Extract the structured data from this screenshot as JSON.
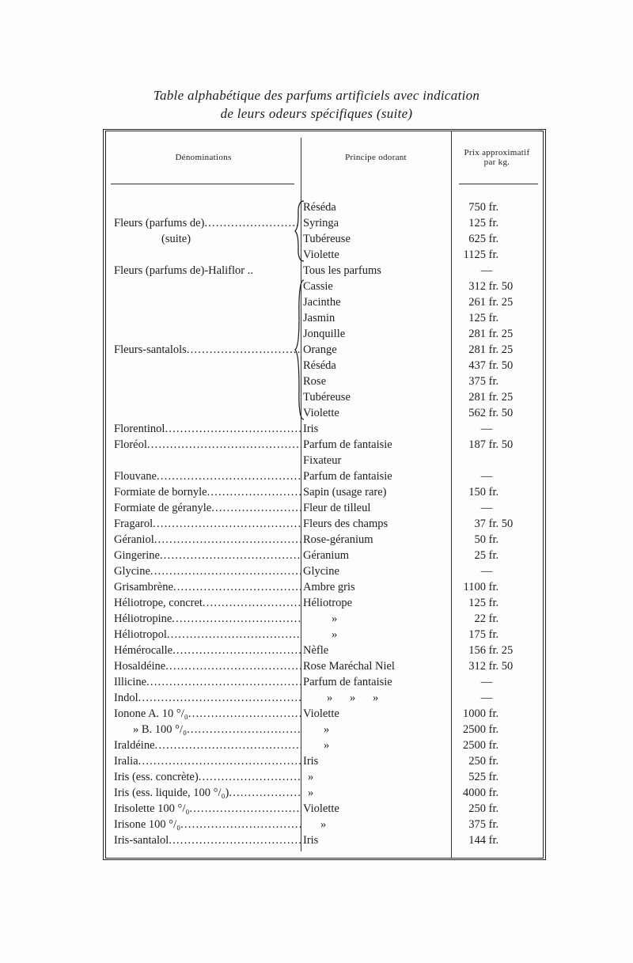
{
  "title_line1": "Table alphabétique des parfums artificiels avec indication",
  "title_line2": "de leurs odeurs spécifiques (suite)",
  "headers": {
    "name": "Dénominations",
    "principle": "Principe odorant",
    "price_line1": "Prix approximatif",
    "price_line2": "par kg."
  },
  "rows": [
    {
      "name": "",
      "principle": "Réséda",
      "price": "750 fr."
    },
    {
      "name": "Fleurs (parfums de)",
      "leader": true,
      "principle": "Syringa",
      "price": "125 fr."
    },
    {
      "name": "(suite)",
      "indent": 60,
      "principle": "Tubéreuse",
      "price": "625 fr."
    },
    {
      "name": "",
      "principle": "Violette",
      "price": "1125 fr."
    },
    {
      "name": "Fleurs (parfums de)-Haliflor ..",
      "principle": "Tous les parfums",
      "price": "—"
    },
    {
      "name": "",
      "principle": "Cassie",
      "price": "312 fr. 50"
    },
    {
      "name": "",
      "principle": "Jacinthe",
      "price": "261 fr. 25"
    },
    {
      "name": "",
      "principle": "Jasmin",
      "price": "125 fr."
    },
    {
      "name": "",
      "principle": "Jonquille",
      "price": "281 fr. 25"
    },
    {
      "name": "Fleurs-santalols",
      "leader": true,
      "principle": "Orange",
      "price": "281 fr. 25"
    },
    {
      "name": "",
      "principle": "Réséda",
      "price": "437 fr. 50"
    },
    {
      "name": "",
      "principle": "Rose",
      "price": "375 fr."
    },
    {
      "name": "",
      "principle": "Tubéreuse",
      "price": "281 fr. 25"
    },
    {
      "name": "",
      "principle": "Violette",
      "price": "562 fr. 50"
    },
    {
      "name": "Florentinol",
      "leader": true,
      "principle": "Iris",
      "price": "—"
    },
    {
      "name": "Floréol",
      "leader": true,
      "principle": "Parfum de fantaisie",
      "price": "187 fr. 50"
    },
    {
      "name": "",
      "principle": "Fixateur",
      "price": ""
    },
    {
      "name": "Flouvane",
      "leader": true,
      "principle": "Parfum de fantaisie",
      "price": "—"
    },
    {
      "name": "Formiate de bornyle",
      "leader": true,
      "principle": "Sapin (usage rare)",
      "price": "150 fr."
    },
    {
      "name": "Formiate de géranyle",
      "leader": true,
      "principle": "Fleur de tilleul",
      "price": "—"
    },
    {
      "name": "Fragarol",
      "leader": true,
      "principle": "Fleurs des champs",
      "price": "37 fr. 50"
    },
    {
      "name": "Géraniol",
      "leader": true,
      "principle": "Rose-géranium",
      "price": "50 fr."
    },
    {
      "name": "Gingerine",
      "leader": true,
      "principle": "Géranium",
      "price": "25 fr."
    },
    {
      "name": "Glycine",
      "leader": true,
      "principle": "Glycine",
      "price": "—"
    },
    {
      "name": "Grisambrène",
      "leader": true,
      "principle": "Ambre gris",
      "price": "1100 fr."
    },
    {
      "name": "Héliotrope, concret",
      "leader": true,
      "principle": "Héliotrope",
      "price": "125 fr."
    },
    {
      "name": "Héliotropine",
      "leader": true,
      "principle": "»",
      "pindent": 36,
      "price": "22 fr."
    },
    {
      "name": "Héliotropol",
      "leader": true,
      "principle": "»",
      "pindent": 36,
      "price": "175 fr."
    },
    {
      "name": "Hémérocalle",
      "leader": true,
      "principle": "Nèfle",
      "price": "156 fr. 25"
    },
    {
      "name": "Hosaldéine",
      "leader": true,
      "principle": "Rose Maréchal Niel",
      "price": "312 fr. 50"
    },
    {
      "name": "Illicine",
      "leader": true,
      "principle": "Parfum de fantaisie",
      "price": "—"
    },
    {
      "name": "Indol",
      "leader": true,
      "principle": "»      »      »",
      "pindent": 30,
      "price": "—"
    },
    {
      "name": "Ionone A. 10 °/₀",
      "leader": true,
      "principle": "Violette",
      "price": "1000 fr."
    },
    {
      "name": "»   B. 100 °/₀",
      "indent": 24,
      "leader": true,
      "principle": "»",
      "pindent": 26,
      "price": "2500 fr."
    },
    {
      "name": "Iraldéine",
      "leader": true,
      "principle": "»",
      "pindent": 26,
      "price": "2500 fr."
    },
    {
      "name": "Iralia",
      "leader": true,
      "principle": "Iris",
      "price": "250 fr."
    },
    {
      "name": "Iris (ess. concrète)",
      "leader": true,
      "principle": "»",
      "pindent": 6,
      "price": "525 fr."
    },
    {
      "name": "Iris (ess. liquide, 100 °/₀)",
      "leader": true,
      "principle": "»",
      "pindent": 6,
      "price": "4000 fr."
    },
    {
      "name": "Irisolette 100 °/₀",
      "leader": true,
      "principle": "Violette",
      "price": "250 fr."
    },
    {
      "name": "Irisone 100 °/₀",
      "leader": true,
      "principle": "»",
      "pindent": 22,
      "price": "375 fr."
    },
    {
      "name": "Iris-santalol",
      "leader": true,
      "principle": "Iris",
      "price": "144 fr."
    }
  ]
}
